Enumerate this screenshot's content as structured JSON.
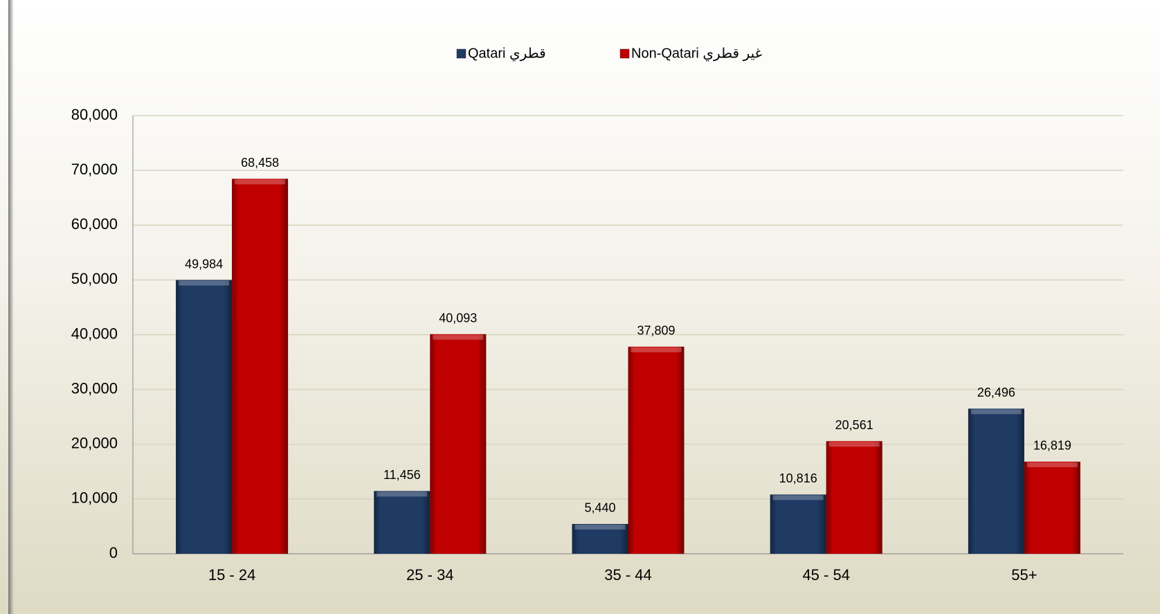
{
  "chart_data": {
    "type": "bar",
    "categories": [
      "15 - 24",
      "25 - 34",
      "35 - 44",
      "45 - 54",
      "55+"
    ],
    "series": [
      {
        "name": "Qatari قطري",
        "color": "#1f3a63",
        "values": [
          49984,
          11456,
          5440,
          10816,
          26496
        ],
        "value_labels": [
          "49,984",
          "11,456",
          "5,440",
          "10,816",
          "26,496"
        ]
      },
      {
        "name": "Non-Qatari غير قطري",
        "color": "#c00000",
        "values": [
          68458,
          40093,
          37809,
          20561,
          16819
        ],
        "value_labels": [
          "68,458",
          "40,093",
          "37,809",
          "20,561",
          "16,819"
        ]
      }
    ],
    "ylim": [
      0,
      80000
    ],
    "yticks": [
      0,
      {
        "value": 10000,
        "label": "10,000"
      },
      {
        "value": 20000,
        "label": "20,000"
      },
      {
        "value": 30000,
        "label": "30,000"
      },
      {
        "value": 40000,
        "label": "40,000"
      },
      {
        "value": 50000,
        "label": "50,000"
      },
      {
        "value": 60000,
        "label": "60,000"
      },
      {
        "value": 70000,
        "label": "70,000"
      },
      {
        "value": 80000,
        "label": "80,000"
      }
    ],
    "grid": true,
    "legend": "top"
  }
}
